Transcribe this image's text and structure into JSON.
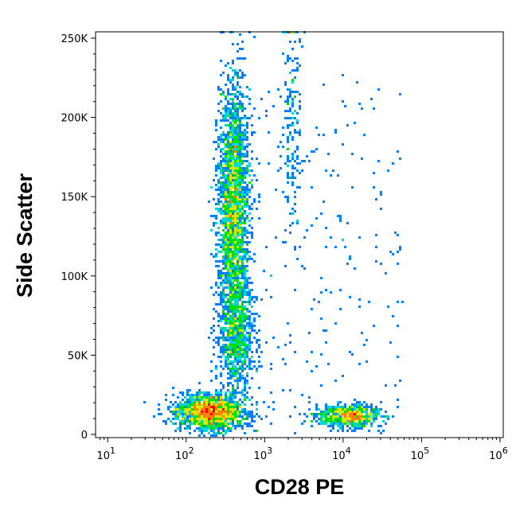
{
  "chart_data": {
    "type": "scatter",
    "style": "density-dot-plot",
    "title": "",
    "xlabel": "CD28 PE",
    "ylabel": "Side Scatter",
    "x_scale": "log",
    "y_scale": "linear",
    "xlim": [
      7,
      1100000
    ],
    "ylim": [
      -2000,
      254000
    ],
    "x_ticks": [
      {
        "value": 10,
        "label": "10",
        "exp": "1"
      },
      {
        "value": 100,
        "label": "10",
        "exp": "2"
      },
      {
        "value": 1000,
        "label": "10",
        "exp": "3"
      },
      {
        "value": 10000,
        "label": "10",
        "exp": "4"
      },
      {
        "value": 100000,
        "label": "10",
        "exp": "5"
      },
      {
        "value": 1000000,
        "label": "10",
        "exp": "6"
      }
    ],
    "y_ticks": [
      {
        "value": 0,
        "label": "0"
      },
      {
        "value": 50000,
        "label": "50K"
      },
      {
        "value": 100000,
        "label": "100K"
      },
      {
        "value": 150000,
        "label": "150K"
      },
      {
        "value": 200000,
        "label": "200K"
      },
      {
        "value": 250000,
        "label": "250K"
      }
    ],
    "grid": false,
    "legend": "none",
    "density_colors": [
      "#0000dd",
      "#0080ff",
      "#00d8d8",
      "#00e000",
      "#d8e800",
      "#ff8000",
      "#ff0000"
    ],
    "populations": [
      {
        "x_center": 200,
        "x_spread": 0.22,
        "y_center": 14000,
        "y_spread": 5500,
        "count": 1800
      },
      {
        "x_center": 400,
        "x_spread": 0.1,
        "y_center": 140000,
        "y_spread": 42000,
        "count": 2600
      },
      {
        "x_center": 450,
        "x_spread": 0.12,
        "y_center": 60000,
        "y_spread": 17000,
        "count": 700
      },
      {
        "x_center": 12000,
        "x_spread": 0.2,
        "y_center": 11500,
        "y_spread": 3500,
        "count": 800
      },
      {
        "x_center": 2200,
        "x_spread": 0.06,
        "y_center": 200000,
        "y_spread": 35000,
        "count": 180
      }
    ]
  }
}
